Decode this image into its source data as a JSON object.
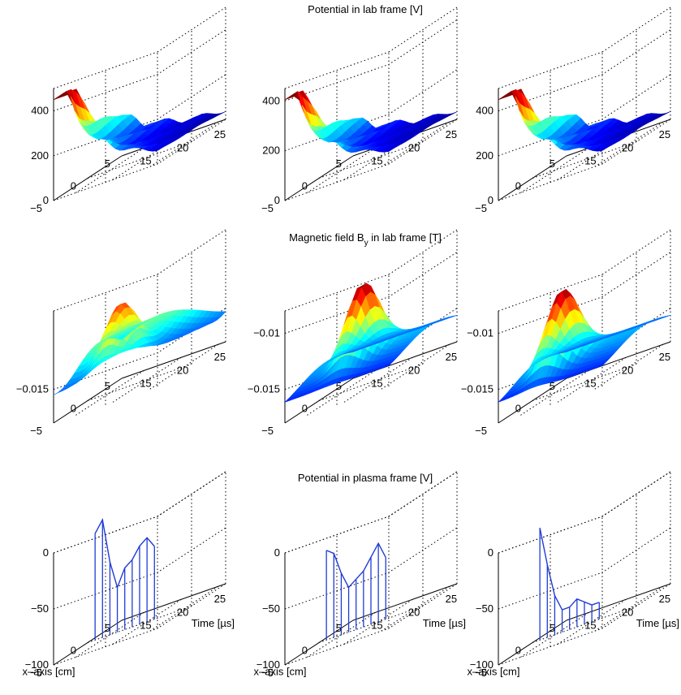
{
  "rows": [
    {
      "title": "Potential in lab frame [V]",
      "title_sub": "",
      "title_after": "",
      "kind": "surface",
      "zticks": [
        [
          "0",
          "200",
          "400"
        ],
        [
          "0",
          "200",
          "400"
        ],
        [
          "0",
          "200",
          "400"
        ]
      ],
      "xaxis_label": "",
      "time_label": ""
    },
    {
      "title": "Magnetic field B",
      "title_sub": "y",
      "title_after": " in lab frame [T]",
      "kind": "surface",
      "zticks": [
        [
          "-0.015"
        ],
        [
          "-0.015",
          "-0.01"
        ],
        [
          "-0.015",
          "-0.01"
        ]
      ],
      "xaxis_label": "",
      "time_label": ""
    },
    {
      "title": "Potential in plasma frame [V]",
      "title_sub": "",
      "title_after": "",
      "kind": "stem",
      "zticks": [
        [
          "-100",
          "-50",
          "0"
        ],
        [
          "-100",
          "-50",
          "0"
        ],
        [
          "-100",
          "-50",
          "0"
        ]
      ],
      "xaxis_label": "x-axis [cm]",
      "time_label": "Time [µs]"
    }
  ],
  "xticks": [
    "-5",
    "0",
    "5"
  ],
  "tticks": [
    "15",
    "20",
    "25"
  ],
  "colors": {
    "stem": "#1f3bd6",
    "colormap": [
      "#00008f",
      "#0000ff",
      "#0080ff",
      "#00ffff",
      "#80ff80",
      "#ffff00",
      "#ff8000",
      "#ff0000",
      "#800000"
    ]
  },
  "chart_data": [
    {
      "type": "surface",
      "title": "Potential in lab frame [V]",
      "panel": 1,
      "zlim": [
        0,
        500
      ],
      "xlim": [
        -5,
        5
      ],
      "tlim": [
        12,
        26
      ],
      "peak": 480
    },
    {
      "type": "surface",
      "title": "Potential in lab frame [V]",
      "panel": 2,
      "zlim": [
        0,
        450
      ],
      "xlim": [
        -5,
        5
      ],
      "tlim": [
        12,
        26
      ],
      "peak": 460
    },
    {
      "type": "surface",
      "title": "Potential in lab frame [V]",
      "panel": 3,
      "zlim": [
        0,
        500
      ],
      "xlim": [
        -5,
        5
      ],
      "tlim": [
        12,
        26
      ],
      "peak": 480
    },
    {
      "type": "surface",
      "title": "Magnetic field By in lab frame [T]",
      "panel": 1,
      "zlim": [
        -0.018,
        -0.008
      ],
      "xlim": [
        -5,
        5
      ],
      "tlim": [
        12,
        26
      ],
      "peak": -0.0095
    },
    {
      "type": "surface",
      "title": "Magnetic field By in lab frame [T]",
      "panel": 2,
      "zlim": [
        -0.018,
        -0.008
      ],
      "xlim": [
        -5,
        5
      ],
      "tlim": [
        12,
        26
      ],
      "peak": -0.0095
    },
    {
      "type": "surface",
      "title": "Magnetic field By in lab frame [T]",
      "panel": 3,
      "zlim": [
        -0.018,
        -0.008
      ],
      "xlim": [
        -5,
        5
      ],
      "tlim": [
        12,
        26
      ],
      "peak": -0.009
    },
    {
      "type": "stem",
      "title": "Potential in plasma frame [V]",
      "panel": 1,
      "zlim": [
        -100,
        0
      ],
      "xlabel": "x-axis [cm]",
      "ylabel": "Time [µs]",
      "series": [
        {
          "t": [
            13,
            14,
            15,
            16,
            17,
            18,
            19,
            20,
            21
          ],
          "v": [
            -5,
            5,
            -35,
            -60,
            -45,
            -40,
            -30,
            -25,
            -35
          ]
        }
      ]
    },
    {
      "type": "stem",
      "title": "Potential in plasma frame [V]",
      "panel": 2,
      "zlim": [
        -100,
        0
      ],
      "xlabel": "x-axis [cm]",
      "ylabel": "Time [µs]",
      "series": [
        {
          "t": [
            13,
            14,
            15,
            16,
            17,
            18,
            19,
            20,
            21
          ],
          "v": [
            -20,
            -25,
            -45,
            -60,
            -55,
            -50,
            -40,
            -30,
            -45
          ]
        }
      ]
    },
    {
      "type": "stem",
      "title": "Potential in plasma frame [V]",
      "panel": 3,
      "zlim": [
        -100,
        0
      ],
      "xlabel": "x-axis [cm]",
      "ylabel": "Time [µs]",
      "series": [
        {
          "t": [
            13,
            14,
            15,
            16,
            17,
            18,
            19,
            20,
            21
          ],
          "v": [
            0,
            -35,
            -65,
            -80,
            -80,
            -75,
            -80,
            -85,
            -85
          ]
        }
      ]
    }
  ]
}
